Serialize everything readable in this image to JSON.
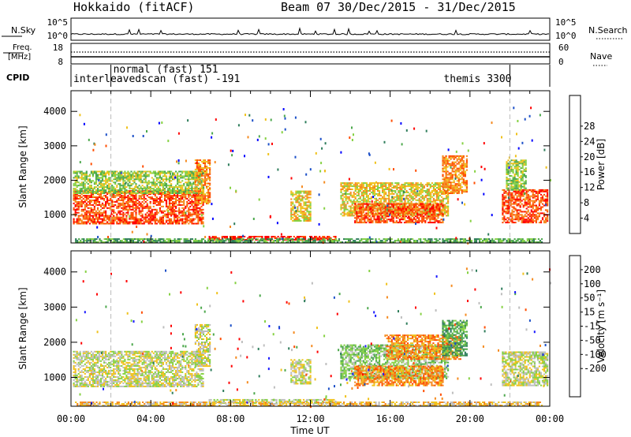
{
  "header": {
    "station": "Hokkaido (fitACF)",
    "beam": "Beam 07",
    "dates": "30/Dec/2015 - 31/Dec/2015"
  },
  "top_panels": {
    "nsky_label": "N.Sky",
    "nsky_ticks": [
      "10^5",
      "10^0"
    ],
    "nsearch_ticks": [
      "10^5",
      "10^0"
    ],
    "nsearch_label": "N.Search",
    "freq_label_1": "Freq.",
    "freq_label_2": "[MHz]",
    "freq_ticks": [
      "18",
      "8"
    ],
    "nave_ticks": [
      "60",
      "0"
    ],
    "nave_label": "Nave",
    "cpid_label": "CPID",
    "cpid_entries": [
      {
        "text": "normal (fast) 151",
        "start_hr": 2.0
      },
      {
        "text": "interleavedscan (fast) -191",
        "start_hr": 0.0
      },
      {
        "text": "themis 3300",
        "start_hr": 22.0
      }
    ]
  },
  "chart_data": [
    {
      "type": "heatmap",
      "panel": "power",
      "ylabel": "Slant Range [km]",
      "yticks": [
        "1000",
        "2000",
        "3000",
        "4000"
      ],
      "ylim": [
        180,
        4600
      ],
      "xlim": [
        0,
        24
      ],
      "colorbar_label": "Power [dB]",
      "colorbar_ticks": [
        "4",
        "8",
        "12",
        "16",
        "20",
        "24",
        "28"
      ],
      "colorbar_colors": [
        "#0000ff",
        "#1c50c8",
        "#2e7d5b",
        "#4ca84c",
        "#86d143",
        "#f0c21c",
        "#f58a1f",
        "#ff4d00",
        "#ff0000"
      ],
      "echo_regions": [
        {
          "t0": 0.1,
          "t1": 6.6,
          "r0": 720,
          "r1": 1700,
          "level": 7
        },
        {
          "t0": 0.1,
          "t1": 6.6,
          "r0": 1600,
          "r1": 2250,
          "level": 4
        },
        {
          "t0": 6.2,
          "t1": 7.0,
          "r0": 1300,
          "r1": 2600,
          "level": 6
        },
        {
          "t0": 6.9,
          "t1": 13.3,
          "r0": 250,
          "r1": 370,
          "level": 8
        },
        {
          "t0": 0.2,
          "t1": 23.6,
          "r0": 180,
          "r1": 300,
          "level": 3
        },
        {
          "t0": 11.0,
          "t1": 12.0,
          "r0": 800,
          "r1": 1700,
          "level": 5
        },
        {
          "t0": 13.5,
          "t1": 18.9,
          "r0": 950,
          "r1": 1900,
          "level": 5
        },
        {
          "t0": 14.2,
          "t1": 18.6,
          "r0": 750,
          "r1": 1300,
          "level": 7
        },
        {
          "t0": 18.6,
          "t1": 19.8,
          "r0": 1600,
          "r1": 2700,
          "level": 6
        },
        {
          "t0": 21.6,
          "t1": 23.9,
          "r0": 750,
          "r1": 1700,
          "level": 7
        },
        {
          "t0": 21.8,
          "t1": 22.8,
          "r0": 1700,
          "r1": 2600,
          "level": 4
        }
      ]
    },
    {
      "type": "heatmap",
      "panel": "velocity",
      "ylabel": "Slant Range [km]",
      "yticks": [
        "1000",
        "2000",
        "3000",
        "4000"
      ],
      "ylim": [
        180,
        4600
      ],
      "xlim": [
        0,
        24
      ],
      "colorbar_label": "Velocity [m s⁻¹]",
      "colorbar_ticks": [
        "200",
        "100",
        "50",
        "15",
        "-15",
        "-50",
        "-100",
        "-200"
      ],
      "colorbar_colors": [
        "#1c1cff",
        "#1c50c8",
        "#2e7d5b",
        "#4ca84c",
        "#86d143",
        "#bebebe",
        "#f0c21c",
        "#f58a1f",
        "#ff4d00",
        "#ff0000"
      ],
      "echo_regions": [
        {
          "t0": 0.1,
          "t1": 6.6,
          "r0": 720,
          "r1": 1750,
          "level": 5
        },
        {
          "t0": 6.2,
          "t1": 7.0,
          "r0": 1300,
          "r1": 2500,
          "level": 5
        },
        {
          "t0": 6.9,
          "t1": 13.3,
          "r0": 250,
          "r1": 370,
          "level": 5
        },
        {
          "t0": 0.2,
          "t1": 23.6,
          "r0": 180,
          "r1": 300,
          "level": 6
        },
        {
          "t0": 11.0,
          "t1": 12.0,
          "r0": 800,
          "r1": 1500,
          "level": 5
        },
        {
          "t0": 13.5,
          "t1": 18.9,
          "r0": 950,
          "r1": 1900,
          "level": 4
        },
        {
          "t0": 14.2,
          "t1": 18.6,
          "r0": 750,
          "r1": 1300,
          "level": 7
        },
        {
          "t0": 15.8,
          "t1": 19.5,
          "r0": 1500,
          "r1": 2200,
          "level": 7
        },
        {
          "t0": 18.6,
          "t1": 19.8,
          "r0": 1600,
          "r1": 2600,
          "level": 3
        },
        {
          "t0": 21.6,
          "t1": 23.9,
          "r0": 750,
          "r1": 1700,
          "level": 5
        }
      ]
    }
  ],
  "x_axis": {
    "ticks": [
      "00:00",
      "04:00",
      "08:00",
      "12:00",
      "16:00",
      "20:00",
      "00:00"
    ],
    "label": "Time UT"
  }
}
